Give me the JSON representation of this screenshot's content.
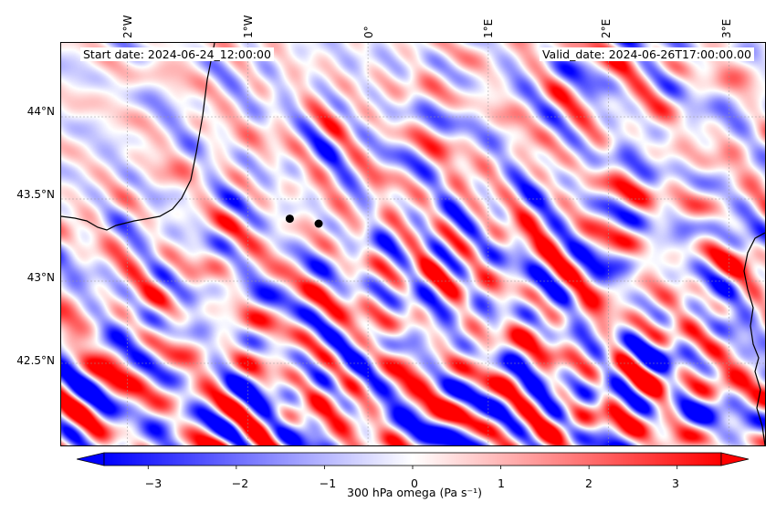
{
  "map": {
    "lon_ticks": [
      "2°W",
      "1°W",
      "0°",
      "1°E",
      "2°E",
      "3°E"
    ],
    "lat_ticks": [
      "44°N",
      "43.5°N",
      "43°N",
      "42.5°N"
    ],
    "start_date": "Start date: 2024-06-24_12:00:00",
    "valid_date": "Valid_date: 2024-06-26T17:00:00.00",
    "lon_range": [
      -2.55,
      3.3
    ],
    "lat_range": [
      42.0,
      44.45
    ],
    "markers": [
      {
        "lon": -0.65,
        "lat": 43.38
      },
      {
        "lon": -0.41,
        "lat": 43.35
      }
    ]
  },
  "colorbar": {
    "label": "300 hPa omega (Pa s⁻¹)",
    "ticks": [
      "−3",
      "−2",
      "−1",
      "0",
      "1",
      "2",
      "3"
    ],
    "tick_values": [
      -3,
      -2,
      -1,
      0,
      1,
      2,
      3
    ],
    "range": [
      -3.5,
      3.5
    ],
    "colormap": "bwr",
    "color_low": "#0000ff",
    "color_mid": "#ffffff",
    "color_high": "#ff0000"
  }
}
